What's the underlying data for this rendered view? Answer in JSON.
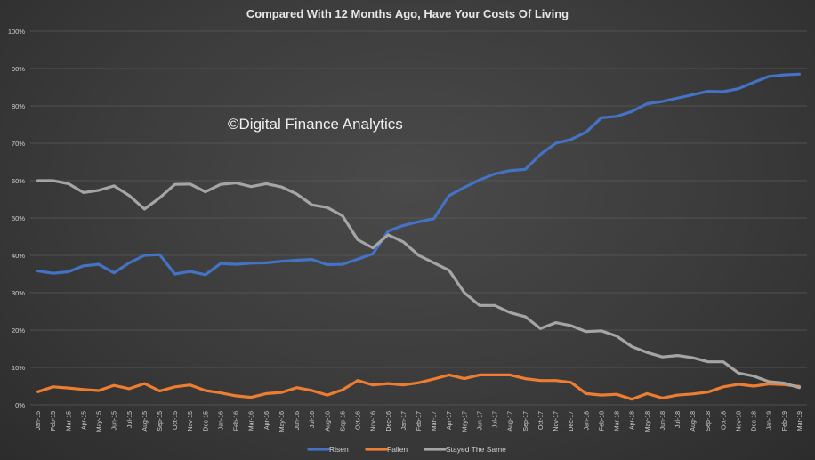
{
  "chart_data": {
    "type": "line",
    "title": "Compared With 12 Months Ago, Have Your Costs Of Living",
    "watermark": "©Digital Finance Analytics",
    "ylim": [
      0,
      100
    ],
    "yticks": [
      "0%",
      "10%",
      "20%",
      "30%",
      "40%",
      "50%",
      "60%",
      "70%",
      "80%",
      "90%",
      "100%"
    ],
    "x": [
      "Jan-15",
      "Feb-15",
      "Mar-15",
      "Apr-15",
      "May-15",
      "Jun-15",
      "Jul-15",
      "Aug-15",
      "Sep-15",
      "Oct-15",
      "Nov-15",
      "Dec-15",
      "Jan-16",
      "Feb-16",
      "Mar-16",
      "Apr-16",
      "May-16",
      "Jun-16",
      "Jul-16",
      "Aug-16",
      "Sep-16",
      "Oct-16",
      "Nov-16",
      "Dec-16",
      "Jan-17",
      "Feb-17",
      "Mar-17",
      "Apr-17",
      "May-17",
      "Jun-17",
      "Jul-17",
      "Aug-17",
      "Sep-17",
      "Oct-17",
      "Nov-17",
      "Dec-17",
      "Jan-18",
      "Feb-18",
      "Mar-18",
      "Apr-18",
      "May-18",
      "Jun-18",
      "Jul-18",
      "Aug-18",
      "Sep-18",
      "Oct-18",
      "Nov-18",
      "Dec-18",
      "Jan-19",
      "Feb-19",
      "Mar-19"
    ],
    "grid": true,
    "legend_position": "bottom",
    "series": [
      {
        "name": "Risen",
        "color": "#4472c4",
        "values": [
          35.8,
          35.2,
          35.6,
          37.2,
          37.6,
          35.3,
          38.0,
          40.0,
          40.2,
          35.0,
          35.7,
          34.8,
          37.8,
          37.6,
          37.9,
          38.0,
          38.4,
          38.7,
          38.9,
          37.5,
          37.6,
          39.0,
          40.4,
          46.5,
          48.0,
          49.0,
          49.8,
          56.0,
          58.2,
          60.2,
          61.8,
          62.7,
          63.0,
          67.0,
          70.0,
          71.0,
          73.0,
          76.8,
          77.2,
          78.5,
          80.6,
          81.2,
          82.1,
          83.0,
          83.9,
          83.8,
          84.6,
          86.3,
          87.9,
          88.3,
          88.5
        ]
      },
      {
        "name": "Fallen",
        "color": "#ed7d31",
        "values": [
          3.5,
          4.8,
          4.5,
          4.1,
          3.8,
          5.2,
          4.3,
          5.7,
          3.7,
          4.8,
          5.3,
          3.8,
          3.2,
          2.4,
          2.0,
          3.0,
          3.3,
          4.6,
          3.8,
          2.6,
          4.0,
          6.5,
          5.3,
          5.7,
          5.3,
          5.9,
          6.9,
          8.0,
          7.0,
          8.0,
          8.0,
          8.0,
          7.0,
          6.5,
          6.5,
          6.0,
          3.0,
          2.6,
          2.8,
          1.5,
          3.0,
          1.8,
          2.6,
          2.9,
          3.4,
          4.8,
          5.5,
          5.0,
          5.6,
          5.4,
          4.9
        ]
      },
      {
        "name": "Stayed The Same",
        "color": "#a5a5a5",
        "values": [
          60.0,
          60.0,
          59.2,
          56.8,
          57.4,
          58.6,
          56.0,
          52.4,
          55.4,
          59.0,
          59.1,
          57.0,
          59.0,
          59.4,
          58.4,
          59.2,
          58.3,
          56.4,
          53.5,
          52.8,
          50.6,
          44.2,
          42.0,
          45.5,
          43.6,
          40.0,
          38.0,
          36.0,
          30.0,
          26.6,
          26.6,
          24.7,
          23.6,
          20.4,
          22.0,
          21.2,
          19.6,
          19.8,
          18.4,
          15.6,
          14.0,
          12.8,
          13.2,
          12.6,
          11.5,
          11.5,
          8.5,
          7.7,
          6.2,
          5.8,
          4.6
        ]
      }
    ]
  }
}
